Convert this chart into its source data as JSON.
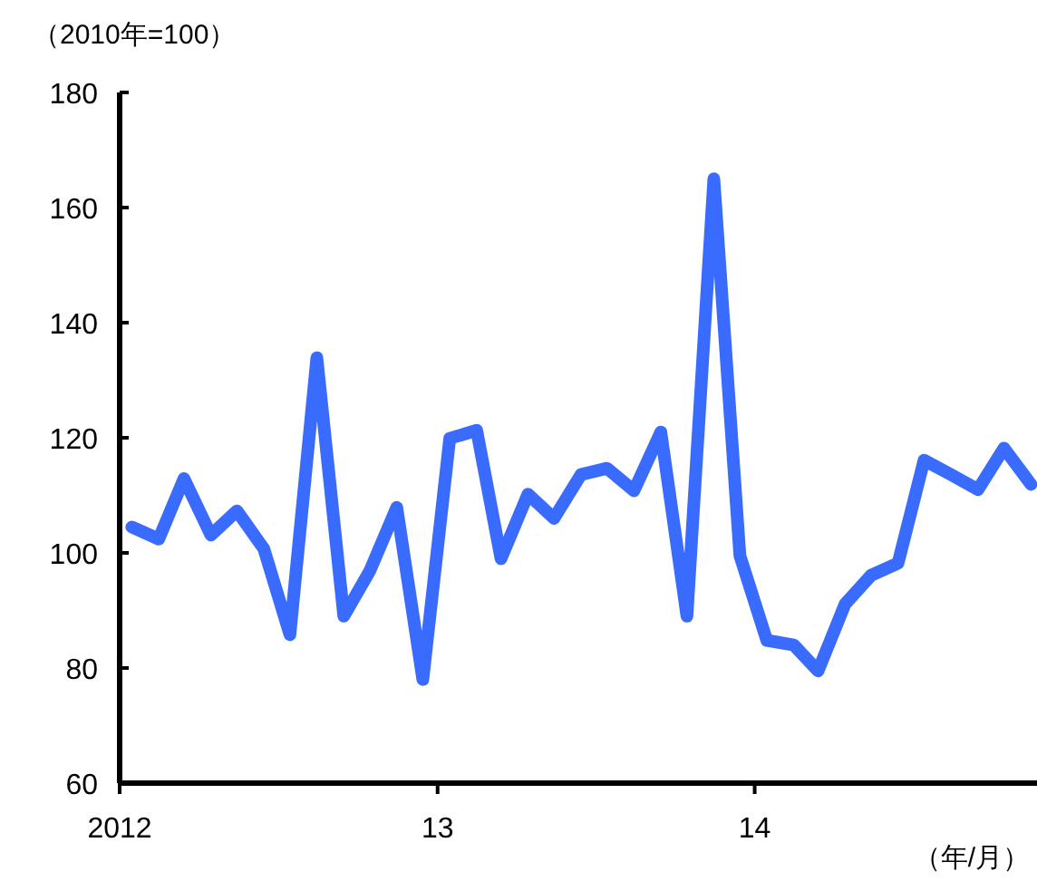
{
  "chart_data": {
    "type": "line",
    "ylabel": "（2010年=100）",
    "xlabel": "（年/月）",
    "x": [
      "2012-01-15",
      "2012-02-15",
      "2012-03-15",
      "2012-04-15",
      "2012-05-15",
      "2012-06-15",
      "2012-07-15",
      "2012-08-15",
      "2012-09-15",
      "2012-10-15",
      "2012-11-15",
      "2012-12-15",
      "2013-01-15",
      "2013-02-15",
      "2013-03-15",
      "2013-04-15",
      "2013-05-15",
      "2013-06-15",
      "2013-07-15",
      "2013-08-15",
      "2013-09-15",
      "2013-10-15",
      "2013-11-15",
      "2013-12-15",
      "2014-01-15",
      "2014-02-15",
      "2014-03-15",
      "2014-04-15",
      "2014-05-15",
      "2014-06-15",
      "2014-07-15",
      "2014-08-15",
      "2014-09-15",
      "2014-10-15",
      "2014-11-15"
    ],
    "series": [
      {
        "color": "#3a6bff",
        "values": [
          104.5,
          102.4,
          112.9,
          103.1,
          107.3,
          100.7,
          85.8,
          133.9,
          89,
          96.9,
          107.9,
          78,
          119.9,
          121.3,
          99,
          110.2,
          106,
          113.6,
          114.7,
          110.8,
          121,
          89,
          165,
          99.5,
          84.8,
          84,
          79.5,
          91.1,
          96.1,
          98.2,
          116.1,
          113.6,
          111,
          118.2,
          111.9
        ]
      }
    ],
    "xlim": [
      "2012-01-01",
      "2014-11-22"
    ],
    "xticks": [
      {
        "value": "2012-01-01",
        "label": "2012"
      },
      {
        "value": "2013-01-01",
        "label": "13"
      },
      {
        "value": "2014-01-01",
        "label": "14"
      }
    ],
    "ylim": [
      60,
      180
    ],
    "yticks": [
      60,
      80,
      100,
      120,
      140,
      160,
      180
    ],
    "grid": false,
    "marker": "none",
    "line_style": "solid"
  }
}
